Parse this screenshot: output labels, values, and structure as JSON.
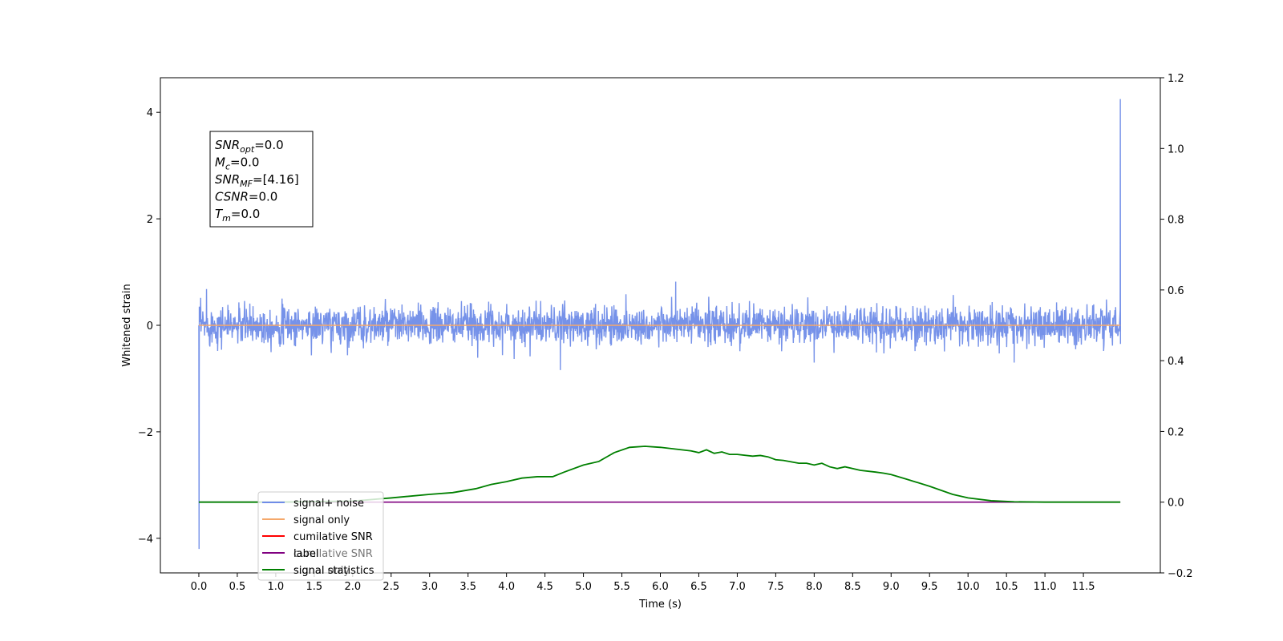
{
  "chart_data": {
    "type": "line",
    "xlabel": "Time (s)",
    "ylabel": "Whitened strain",
    "xlim": [
      -0.5,
      12.5
    ],
    "ylim_left": [
      -4.65,
      4.65
    ],
    "ylim_right": [
      -0.2,
      1.2
    ],
    "grid": false,
    "legend_position": "lower-left",
    "x_ticks": [
      "0.0",
      "0.5",
      "1.0",
      "1.5",
      "2.0",
      "2.5",
      "3.0",
      "3.5",
      "4.0",
      "4.5",
      "5.0",
      "5.5",
      "6.0",
      "6.5",
      "7.0",
      "7.5",
      "8.0",
      "8.5",
      "9.0",
      "9.5",
      "10.0",
      "10.5",
      "11.0",
      "11.5"
    ],
    "y_ticks_left": [
      "−4",
      "−2",
      "0",
      "2",
      "4"
    ],
    "y_ticks_right": [
      "−0.2",
      "0.0",
      "0.2",
      "0.4",
      "0.6",
      "0.8",
      "1.0",
      "1.2"
    ],
    "series": [
      {
        "name": "signal+ noise",
        "color": "#6f8ce8",
        "axis": "left",
        "description_values": {
          "x_range": [
            0.0,
            11.98
          ],
          "typical_amplitude": 0.35,
          "start_spike_min": -4.2,
          "end_spike_max": 4.25,
          "noise_outliers": [
            [
              0.1,
              0.68
            ],
            [
              6.2,
              0.82
            ],
            [
              4.7,
              -0.84
            ],
            [
              8.0,
              -0.7
            ],
            [
              10.6,
              -0.7
            ]
          ]
        }
      },
      {
        "name": "signal only",
        "color": "#f5a86b",
        "axis": "left",
        "x": [
          0.0,
          11.98
        ],
        "y": [
          0.0,
          0.0
        ]
      },
      {
        "name": "cumilative SNR",
        "color": "#ff0000",
        "axis": "right",
        "x": [],
        "y": []
      },
      {
        "name": "label",
        "color": "#800080",
        "axis": "right",
        "x": [
          0.0,
          11.98
        ],
        "y": [
          0.0,
          0.0
        ]
      },
      {
        "name": "signal statistics",
        "color": "#008000",
        "axis": "right",
        "x": [
          0.0,
          1.0,
          2.0,
          2.5,
          3.0,
          3.3,
          3.6,
          3.8,
          4.0,
          4.2,
          4.4,
          4.6,
          4.75,
          5.0,
          5.2,
          5.4,
          5.6,
          5.8,
          6.0,
          6.2,
          6.4,
          6.5,
          6.6,
          6.7,
          6.8,
          6.9,
          7.0,
          7.2,
          7.3,
          7.4,
          7.5,
          7.6,
          7.8,
          7.9,
          8.0,
          8.1,
          8.2,
          8.3,
          8.4,
          8.6,
          8.8,
          8.9,
          9.0,
          9.2,
          9.5,
          9.8,
          10.0,
          10.3,
          10.6,
          11.0,
          11.5,
          11.98
        ],
        "y": [
          0.0,
          0.0,
          0.003,
          0.012,
          0.022,
          0.027,
          0.038,
          0.05,
          0.058,
          0.068,
          0.072,
          0.072,
          0.085,
          0.105,
          0.115,
          0.14,
          0.155,
          0.158,
          0.155,
          0.15,
          0.145,
          0.14,
          0.148,
          0.138,
          0.142,
          0.135,
          0.135,
          0.13,
          0.132,
          0.128,
          0.12,
          0.118,
          0.11,
          0.11,
          0.105,
          0.11,
          0.1,
          0.095,
          0.1,
          0.09,
          0.085,
          0.082,
          0.078,
          0.065,
          0.045,
          0.022,
          0.012,
          0.004,
          0.001,
          0.0,
          0.0,
          0.0
        ]
      }
    ],
    "annotation_lines": [
      {
        "var": "SNR",
        "sub": "opt",
        "rest": "=0.0"
      },
      {
        "var": "M",
        "sub": "c",
        "rest": "=0.0"
      },
      {
        "var": "SNR",
        "sub": "MF",
        "rest": "=[4.16]"
      },
      {
        "var": "CSNR",
        "sub": "",
        "rest": "=0.0"
      },
      {
        "var": "T",
        "sub": "m",
        "rest": "=0.0"
      }
    ],
    "legend_ghost_text": [
      {
        "text": "cumilative SNR",
        "row": 2
      },
      {
        "text": "signal only",
        "row": 3
      }
    ]
  }
}
